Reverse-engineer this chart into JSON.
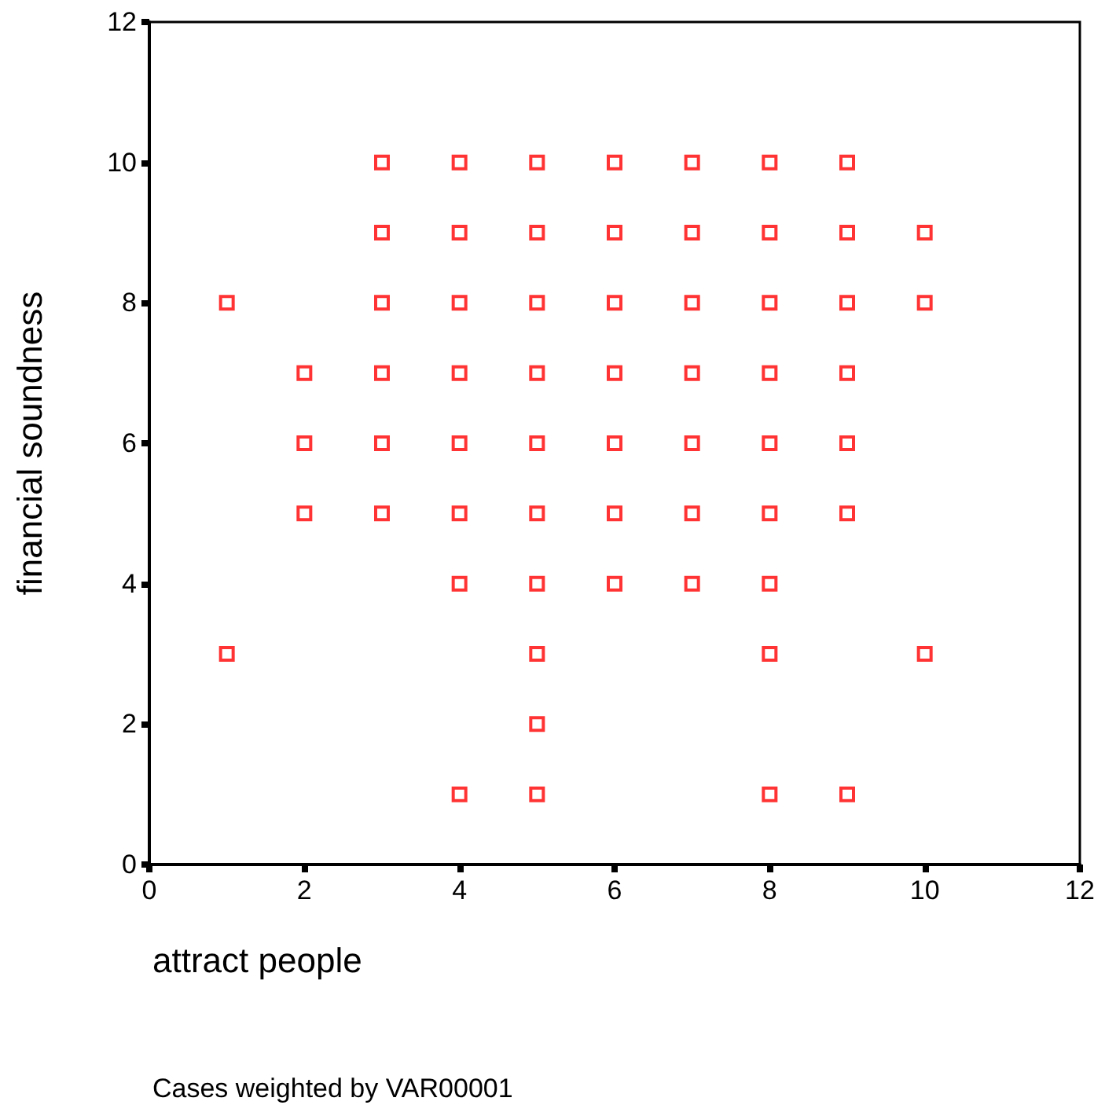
{
  "chart_data": {
    "type": "scatter",
    "xlabel": "attract people",
    "ylabel": "financial soundness",
    "annotations": [
      "Cases weighted by VAR00001"
    ],
    "x": [
      1,
      1,
      2,
      2,
      2,
      3,
      3,
      3,
      3,
      3,
      3,
      4,
      4,
      4,
      4,
      4,
      4,
      4,
      4,
      5,
      5,
      5,
      5,
      5,
      5,
      5,
      5,
      5,
      5,
      6,
      6,
      6,
      6,
      6,
      6,
      6,
      7,
      7,
      7,
      7,
      7,
      7,
      7,
      8,
      8,
      8,
      8,
      8,
      8,
      8,
      8,
      8,
      9,
      9,
      9,
      9,
      9,
      9,
      9,
      10,
      10,
      10
    ],
    "values": [
      8,
      3,
      7,
      6,
      5,
      10,
      9,
      8,
      7,
      6,
      5,
      10,
      9,
      8,
      7,
      6,
      5,
      4,
      1,
      10,
      9,
      8,
      7,
      6,
      5,
      4,
      3,
      2,
      1,
      10,
      9,
      8,
      7,
      6,
      5,
      4,
      10,
      9,
      8,
      7,
      6,
      5,
      4,
      10,
      9,
      8,
      7,
      6,
      5,
      4,
      3,
      1,
      10,
      9,
      8,
      7,
      6,
      5,
      1,
      9,
      8,
      3
    ],
    "color": "#ff0000",
    "marker": "square",
    "grid": false,
    "xlim": [
      0,
      12
    ],
    "xticks": [
      0,
      2,
      4,
      6,
      8,
      10,
      12
    ],
    "ylim": [
      0,
      12
    ],
    "yticks": [
      0,
      2,
      4,
      6,
      8,
      10,
      12
    ]
  }
}
